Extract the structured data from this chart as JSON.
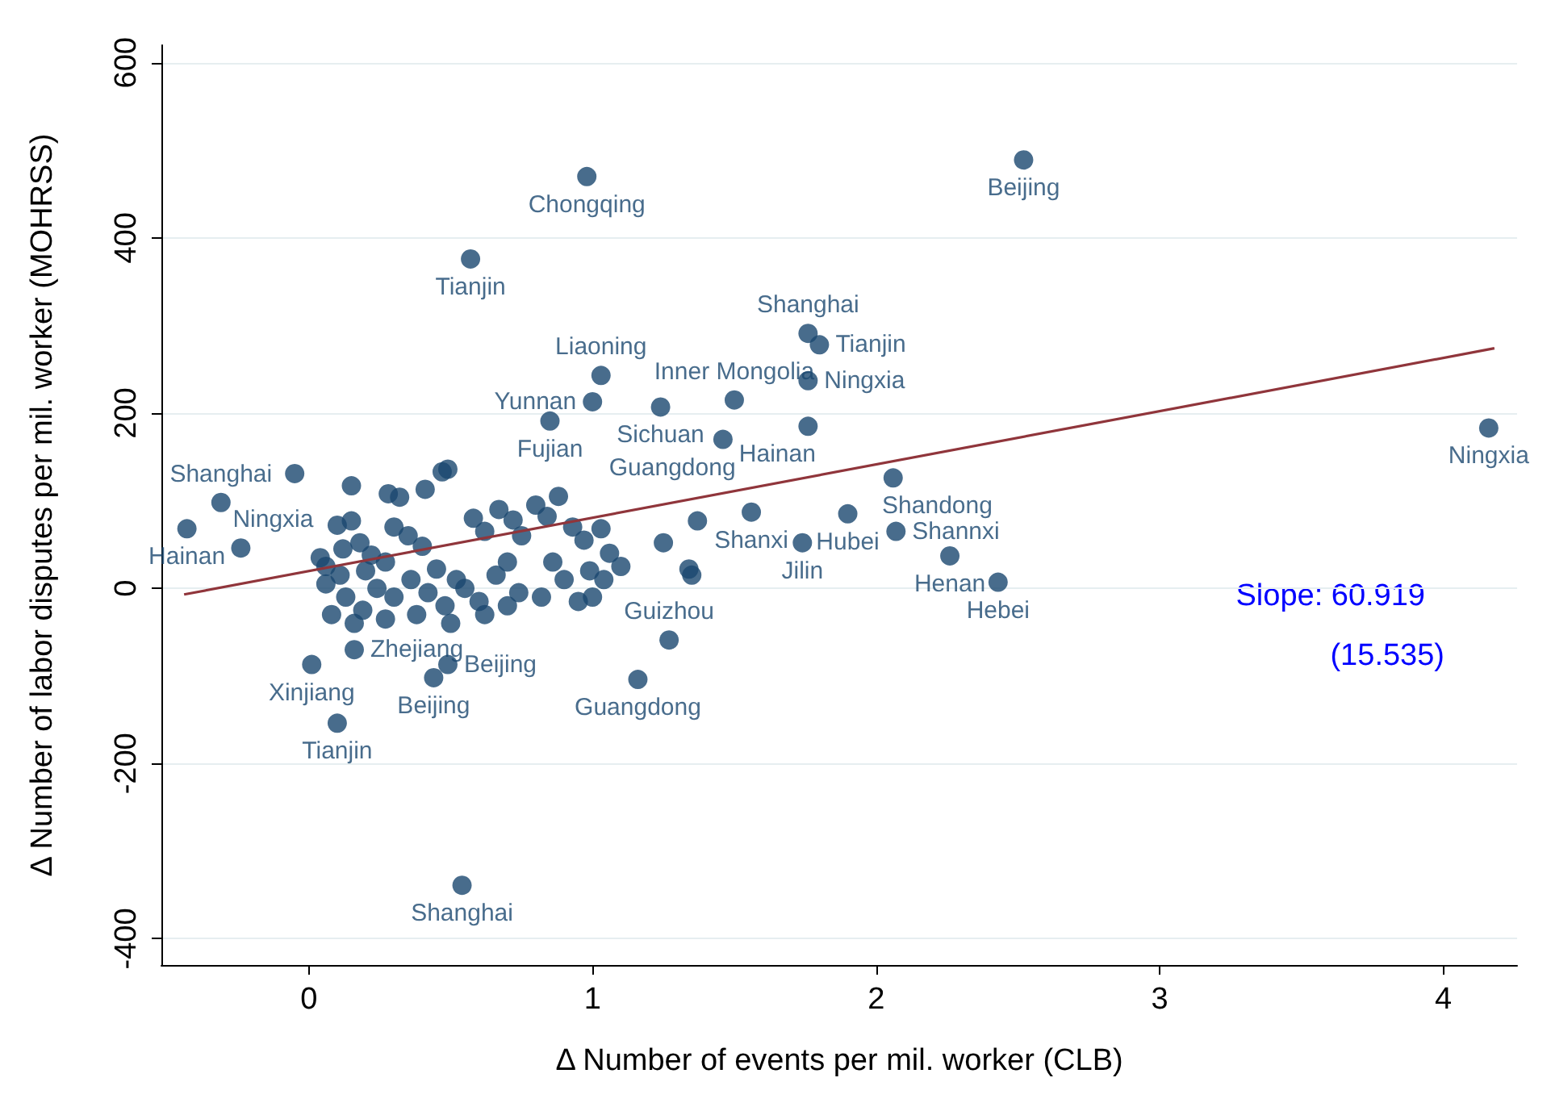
{
  "chart_data": {
    "type": "scatter",
    "xlabel": "Δ Number of events per mil. worker (CLB)",
    "ylabel": "Δ Number of labor disputes per mil. worker (MOHRSS)",
    "xlim": [
      -0.52,
      4.26
    ],
    "ylim": [
      -430,
      620
    ],
    "xticks": [
      0,
      1,
      2,
      3,
      4
    ],
    "yticks": [
      -400,
      -200,
      0,
      200,
      400,
      600
    ],
    "grid": "y",
    "annotations": [
      "Slope: 60.919",
      "(15.535)"
    ],
    "series": [
      {
        "type": "scatter",
        "marker": "circle",
        "color": "#1a476f",
        "x": [
          2.52,
          0.98,
          0.57,
          4.16,
          1.76,
          1.8,
          1.76,
          1.5,
          1.76,
          1.46,
          1.24,
          1.0,
          1.03,
          0.85,
          2.06,
          1.9,
          1.56,
          1.74,
          2.07,
          2.26,
          2.43,
          1.27,
          1.16,
          0.54,
          0.1,
          0.01,
          0.44,
          0.49,
          0.16,
          -0.43,
          -0.24,
          -0.31,
          -0.05,
          0.15,
          0.28,
          0.32,
          0.41,
          0.47,
          0.49,
          0.1,
          0.15,
          0.04,
          0.06,
          0.12,
          0.18,
          0.22,
          0.27,
          0.35,
          0.4,
          0.45,
          0.52,
          0.58,
          0.62,
          0.67,
          0.72,
          0.75,
          0.8,
          0.84,
          0.88,
          0.93,
          0.97,
          1.03,
          1.06,
          0.99,
          0.9,
          0.82,
          0.74,
          0.66,
          0.6,
          0.55,
          0.48,
          0.42,
          0.36,
          0.3,
          0.24,
          0.19,
          0.13,
          0.08,
          0.06,
          0.11,
          0.16,
          0.27,
          0.38,
          0.5,
          0.62,
          0.7,
          0.95,
          1.04,
          1.1,
          1.25,
          1.34,
          1.35,
          1.37,
          1.0,
          0.86,
          0.7,
          0.3,
          0.2
        ],
        "values": [
          489,
          470,
          376,
          183,
          291,
          278,
          237,
          215,
          185,
          170,
          207,
          213,
          243,
          191,
          126,
          85,
          87,
          52,
          65,
          37,
          7,
          -59,
          -104,
          -339,
          -154,
          -87,
          -102,
          -87,
          -70,
          68,
          46,
          98,
          131,
          117,
          108,
          104,
          113,
          133,
          136,
          72,
          77,
          35,
          25,
          45,
          52,
          38,
          30,
          60,
          48,
          22,
          10,
          80,
          65,
          90,
          78,
          60,
          95,
          82,
          105,
          70,
          55,
          68,
          40,
          20,
          10,
          -10,
          -5,
          15,
          -15,
          0,
          -20,
          -5,
          10,
          -10,
          0,
          -25,
          -10,
          -30,
          5,
          15,
          -40,
          -35,
          -30,
          -40,
          -30,
          -20,
          -15,
          10,
          25,
          52,
          22,
          15,
          77,
          -10,
          30,
          30,
          70,
          20
        ],
        "value_labels": [
          "Beijing",
          "Chongqing",
          "Tianjin",
          "Ningxia",
          "Shanghai",
          "Tianjin",
          "Ningxia",
          "Inner Mongolia",
          "Hainan",
          "Guangdong",
          "Sichuan",
          "Yunnan",
          "Liaoning",
          "Fujian",
          "Shandong",
          "Hubei",
          "Shanxi",
          "Jilin",
          "Shannxi",
          "Henan",
          "Hebei",
          "Guizhou",
          "Guangdong",
          "Shanghai",
          "Tianjin",
          "Xinjiang",
          "Beijing",
          "Beijing",
          "Zhejiang",
          "Hainan",
          "Ningxia",
          "Shanghai",
          null,
          null,
          null,
          null,
          null,
          null,
          null,
          null,
          null,
          null,
          null,
          null,
          null,
          null,
          null,
          null,
          null,
          null,
          null,
          null,
          null,
          null,
          null,
          null,
          null,
          null,
          null,
          null,
          null,
          null,
          null,
          null,
          null,
          null,
          null,
          null,
          null,
          null,
          null,
          null,
          null,
          null,
          null,
          null,
          null,
          null,
          null,
          null,
          null,
          null,
          null,
          null,
          null,
          null,
          null,
          null,
          null,
          null,
          null,
          null,
          null,
          null,
          null,
          null,
          null,
          null
        ]
      },
      {
        "type": "line",
        "color": "#90353b",
        "x": [
          -0.44,
          4.18
        ],
        "values": [
          -7,
          274
        ]
      }
    ]
  }
}
